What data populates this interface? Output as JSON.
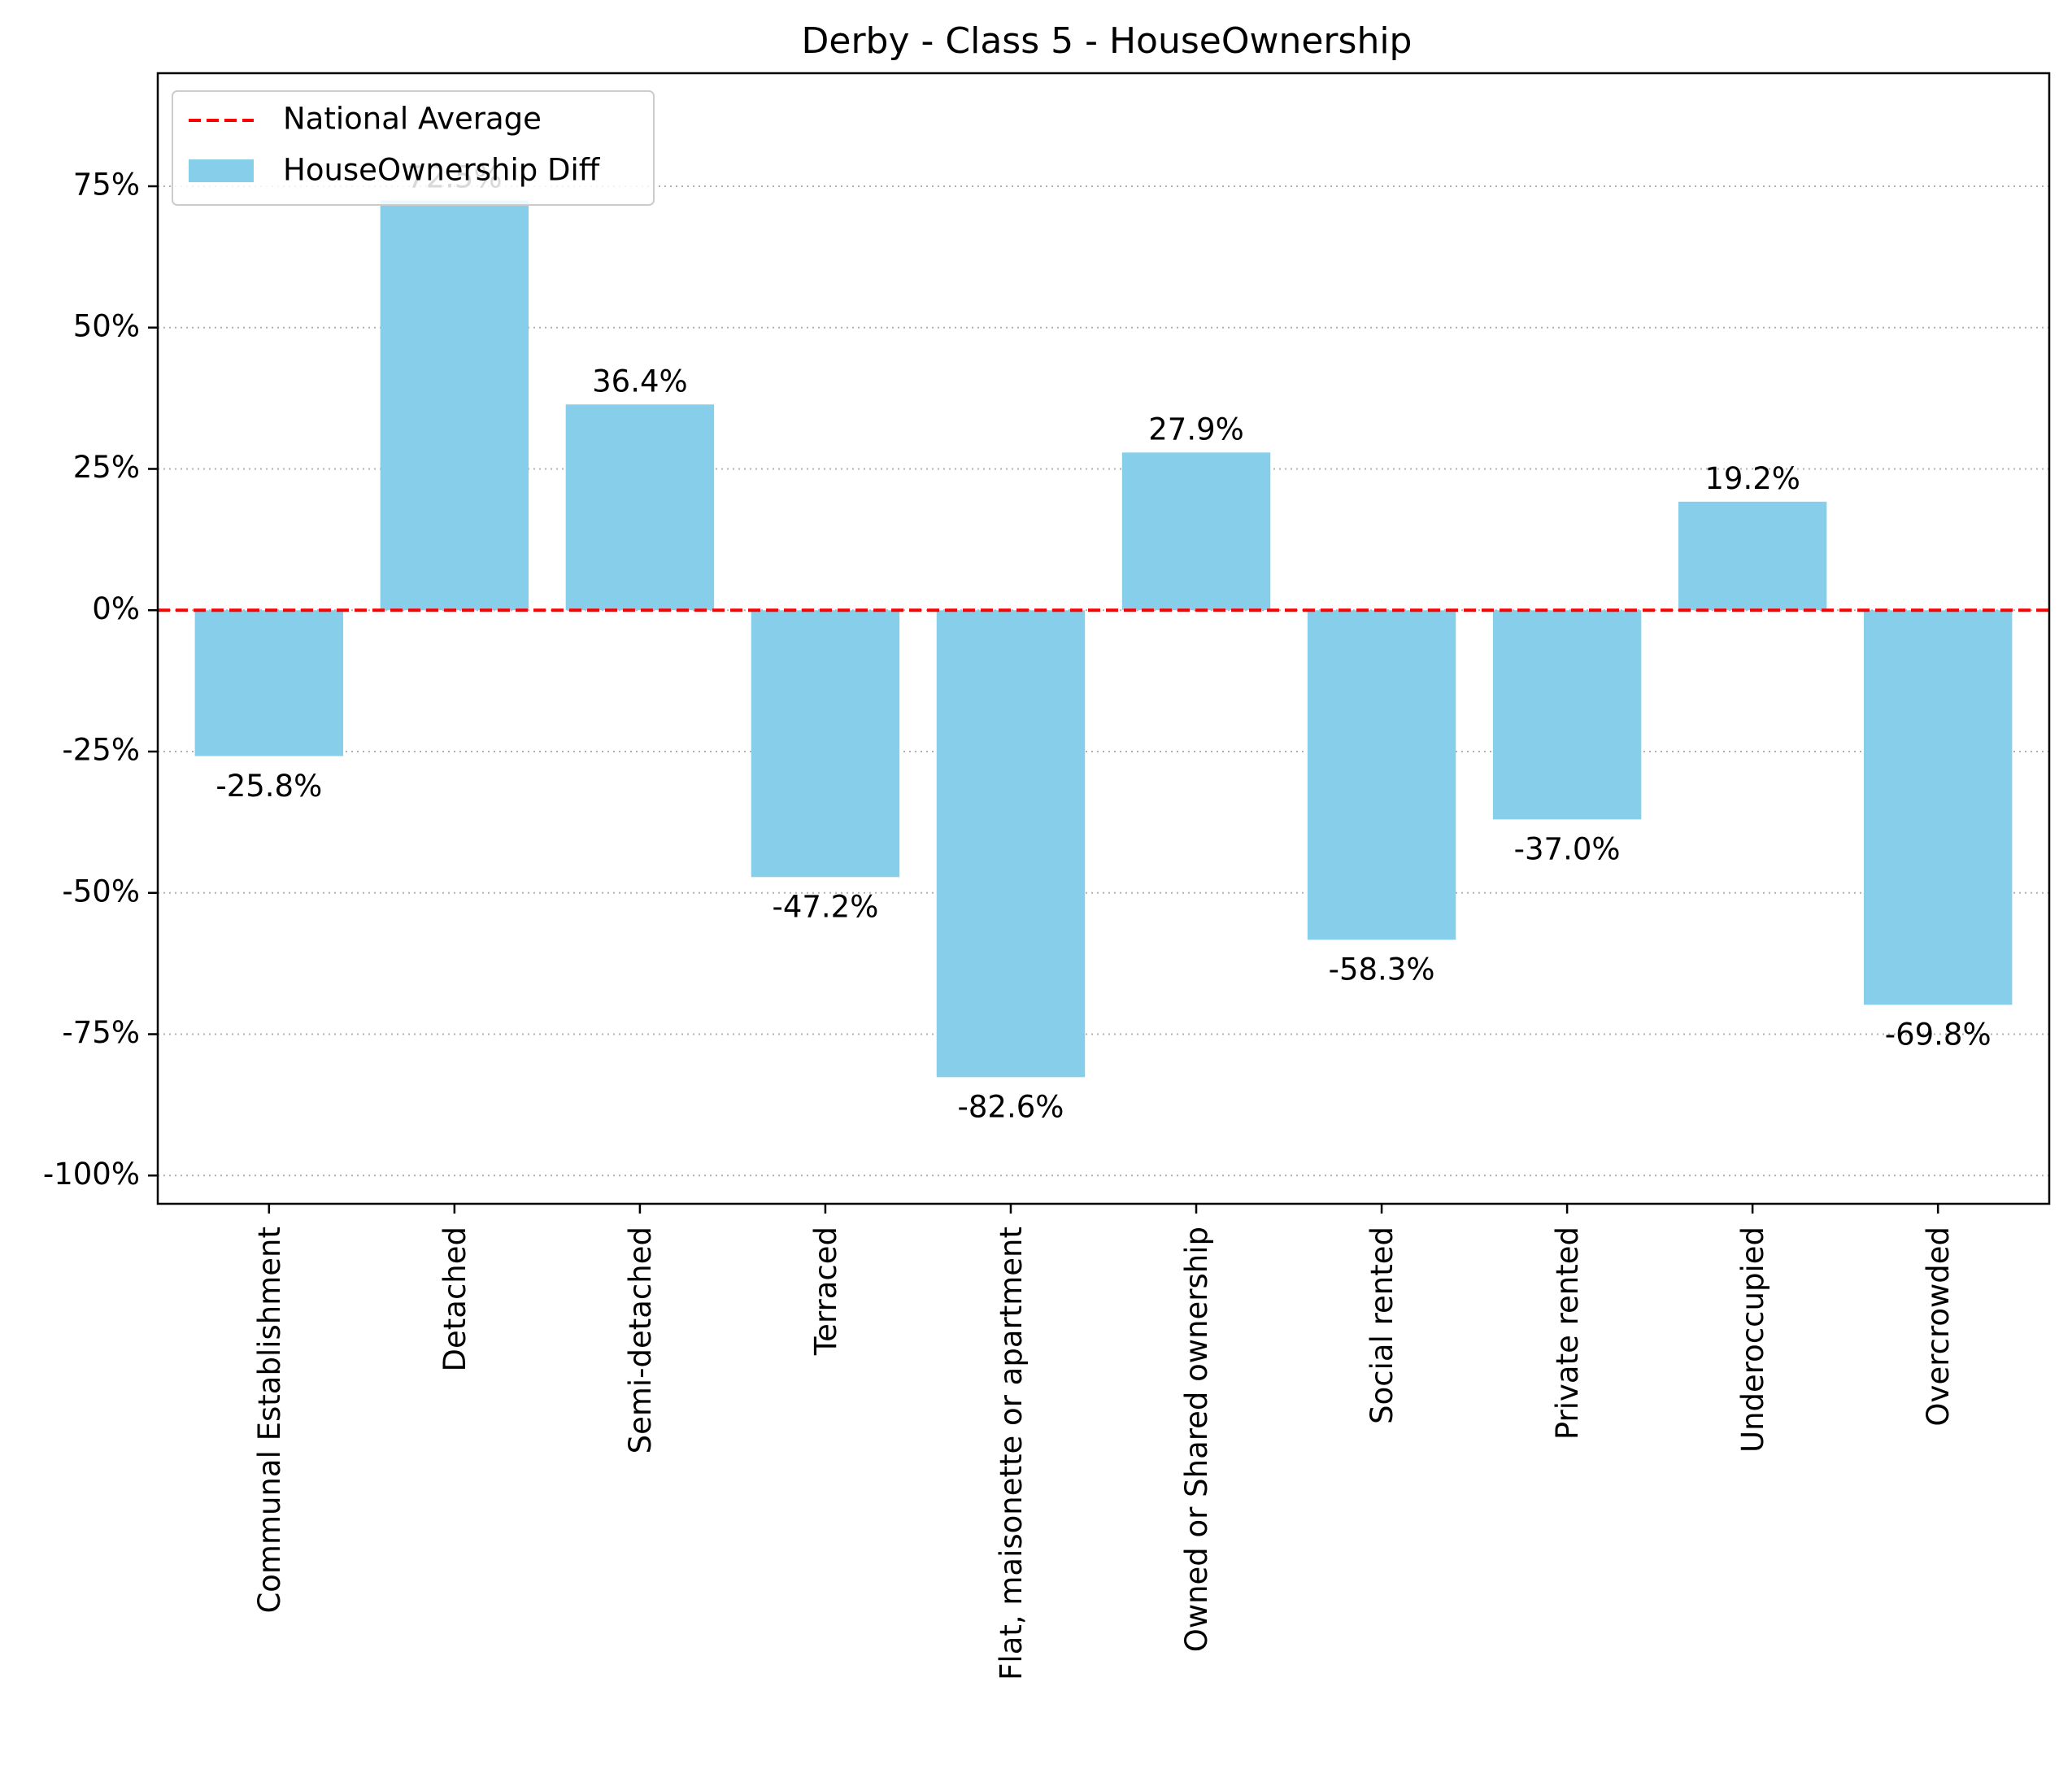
{
  "chart_data": {
    "type": "bar",
    "title": "Derby - Class 5 - HouseOwnership",
    "xlabel": "",
    "ylabel": "",
    "categories": [
      "Communal Establishment",
      "Detached",
      "Semi-detached",
      "Terraced",
      "Flat, maisonette or apartment",
      "Owned or Shared ownership",
      "Social rented",
      "Private rented",
      "Underoccupied",
      "Overcrowded"
    ],
    "series": [
      {
        "name": "HouseOwnership Diff",
        "color": "#87ceeb",
        "values": [
          -25.8,
          72.5,
          36.4,
          -47.2,
          -82.6,
          27.9,
          -58.3,
          -37.0,
          19.2,
          -69.8
        ]
      }
    ],
    "data_labels": [
      "-25.8%",
      "72.5%",
      "36.4%",
      "-47.2%",
      "-82.6%",
      "27.9%",
      "-58.3%",
      "-37.0%",
      "19.2%",
      "-69.8%"
    ],
    "reference_line": {
      "name": "National Average",
      "value": 0,
      "color": "#ff0000",
      "style": "dashed"
    },
    "ylim": [
      -105,
      95
    ],
    "yticks": [
      -100,
      -75,
      -50,
      -25,
      0,
      25,
      50,
      75
    ],
    "ytick_labels": [
      "-100%",
      "-75%",
      "-50%",
      "-25%",
      "0%",
      "25%",
      "50%",
      "75%"
    ],
    "grid": {
      "y": true,
      "x": false,
      "style": "dotted",
      "color": "#b0b0b0"
    },
    "legend": {
      "position": "top-left",
      "entries": [
        "National Average",
        "HouseOwnership Diff"
      ]
    }
  }
}
